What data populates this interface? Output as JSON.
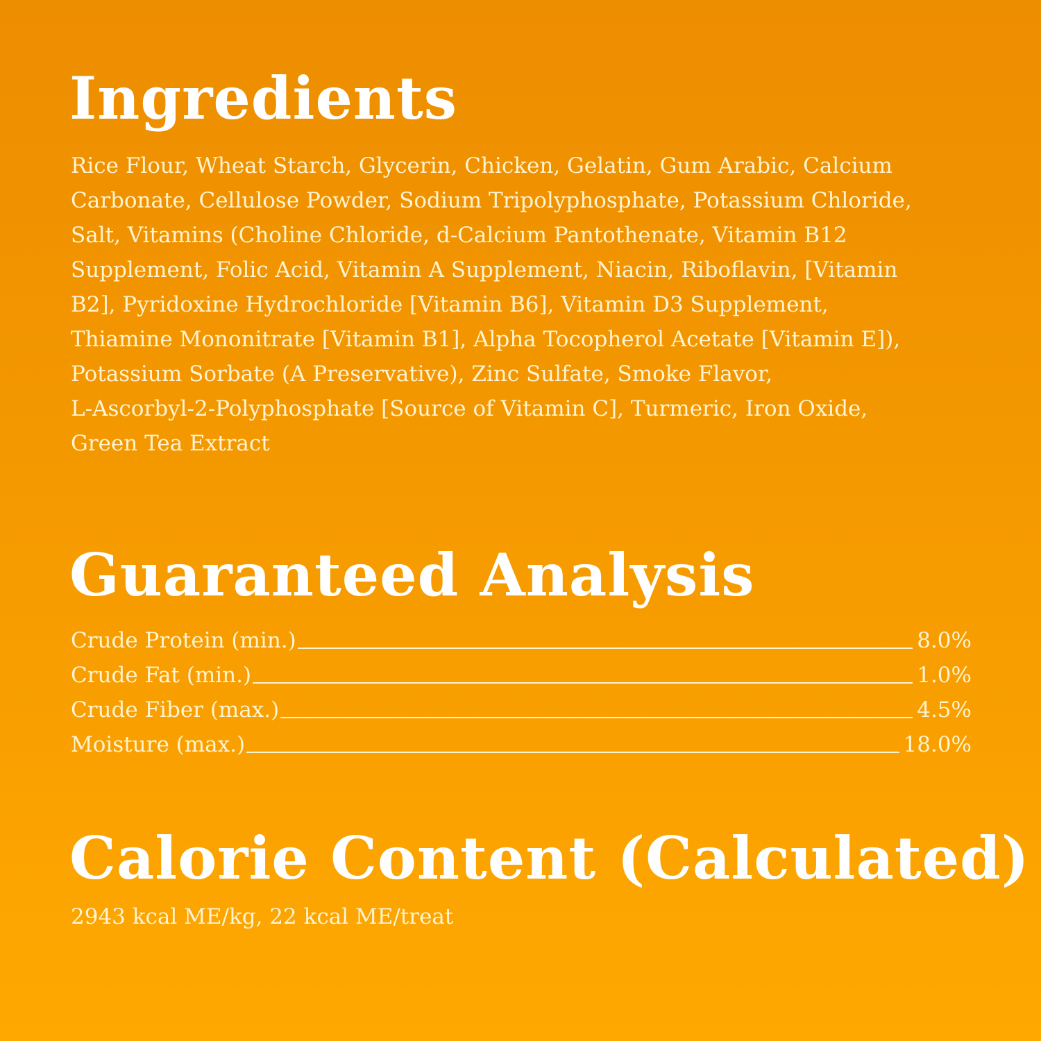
{
  "ingredients": {
    "title": "Ingredients",
    "lines": [
      "Rice Flour, Wheat Starch, Glycerin, Chicken, Gelatin, Gum Arabic, Calcium",
      "Carbonate, Cellulose Powder, Sodium Tripolyphosphate, Potassium Chloride,",
      "Salt, Vitamins (Choline Chloride, d-Calcium Pantothenate, Vitamin B12",
      "Supplement, Folic Acid, Vitamin A Supplement, Niacin, Riboflavin, [Vitamin",
      "B2], Pyridoxine Hydrochloride [Vitamin B6], Vitamin D3 Supplement,",
      "Thiamine Mononitrate [Vitamin B1], Alpha Tocopherol Acetate [Vitamin E]),",
      "Potassium Sorbate (A Preservative), Zinc Sulfate, Smoke Flavor,",
      "L-Ascorbyl-2-Polyphosphate [Source of Vitamin C], Turmeric, Iron Oxide,",
      "Green Tea Extract"
    ]
  },
  "analysis": {
    "title": "Guaranteed Analysis",
    "rows": [
      {
        "label": "Crude Protein (min.)",
        "value": "8.0%"
      },
      {
        "label": "Crude Fat (min.)",
        "value": "1.0%"
      },
      {
        "label": "Crude Fiber (max.)",
        "value": "4.5%"
      },
      {
        "label": "Moisture (max.)",
        "value": "18.0%"
      }
    ]
  },
  "calorie": {
    "title": "Calorie Content (Calculated)",
    "text": "2943 kcal ME/kg, 22 kcal ME/treat"
  },
  "colors": {
    "background_top": "#ED8D00",
    "background_bottom": "#FFA800",
    "text": "#FFF3D2"
  }
}
